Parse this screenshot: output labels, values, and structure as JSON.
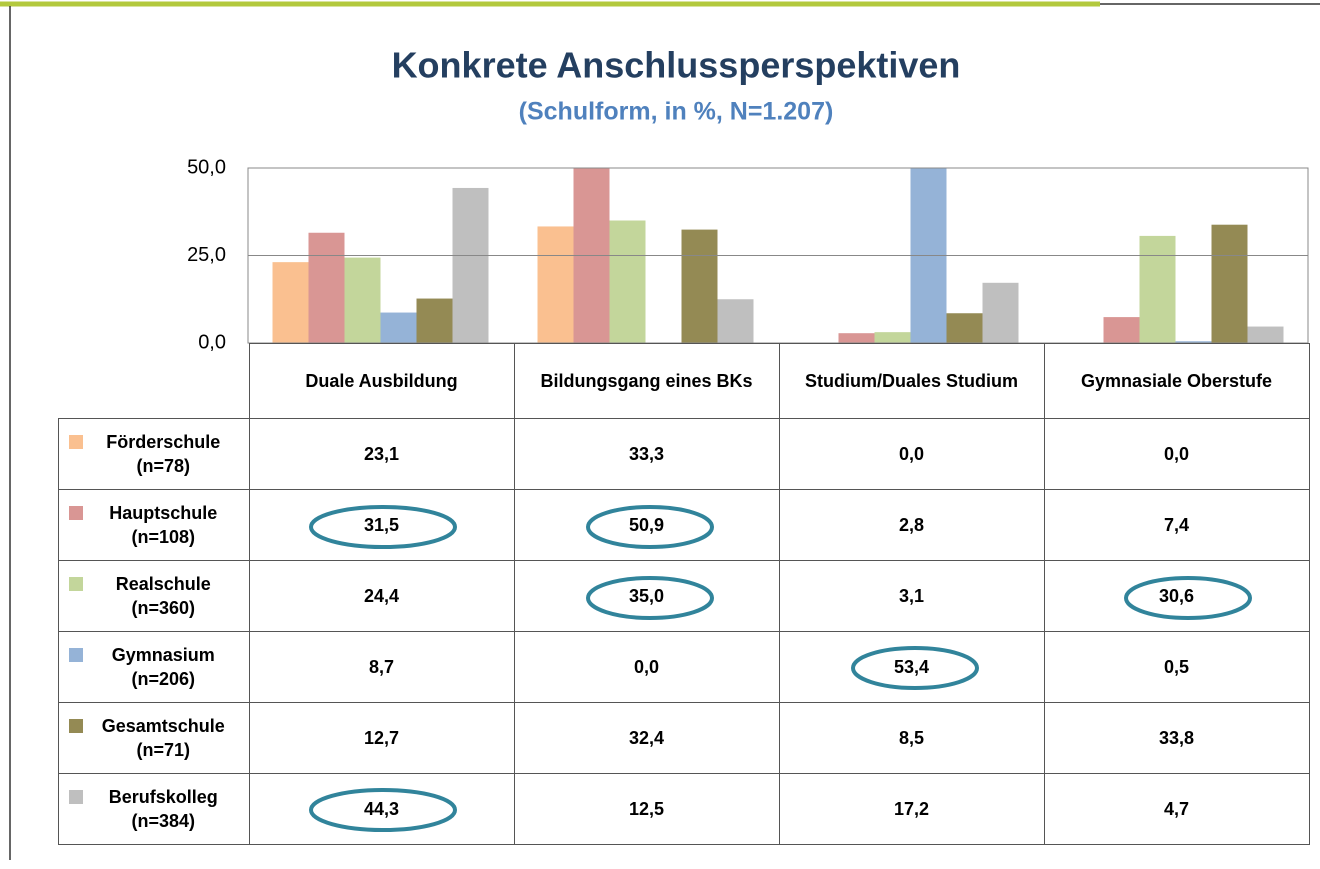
{
  "chart_data": {
    "type": "bar",
    "title": "Konkrete Anschlussperspektiven",
    "subtitle": "(Schulform, in %, N=1.207)",
    "categories": [
      "Duale Ausbildung",
      "Bildungsgang eines BKs",
      "Studium/Duales Studium",
      "Gymnasiale Oberstufe"
    ],
    "series": [
      {
        "name": "Förderschule (n=78)",
        "color": "#fac090",
        "values": [
          23.1,
          33.3,
          0.0,
          0.0
        ],
        "value_labels": [
          "23,1",
          "33,3",
          "0,0",
          "0,0"
        ]
      },
      {
        "name": "Hauptschule (n=108)",
        "color": "#d99694",
        "values": [
          31.5,
          50.9,
          2.8,
          7.4
        ],
        "value_labels": [
          "31,5",
          "50,9",
          "2,8",
          "7,4"
        ]
      },
      {
        "name": "Realschule (n=360)",
        "color": "#c3d69b",
        "values": [
          24.4,
          35.0,
          3.1,
          30.6
        ],
        "value_labels": [
          "24,4",
          "35,0",
          "3,1",
          "30,6"
        ]
      },
      {
        "name": "Gymnasium (n=206)",
        "color": "#95b3d7",
        "values": [
          8.7,
          0.0,
          53.4,
          0.5
        ],
        "value_labels": [
          "8,7",
          "0,0",
          "53,4",
          "0,5"
        ]
      },
      {
        "name": "Gesamtschule (n=71)",
        "color": "#948a54",
        "values": [
          12.7,
          32.4,
          8.5,
          33.8
        ],
        "value_labels": [
          "12,7",
          "32,4",
          "8,5",
          "33,8"
        ]
      },
      {
        "name": "Berufskolleg (n=384)",
        "color": "#bfbfbf",
        "values": [
          44.3,
          12.5,
          17.2,
          4.7
        ],
        "value_labels": [
          "44,3",
          "12,5",
          "17,2",
          "4,7"
        ]
      }
    ],
    "ylim": [
      0,
      50
    ],
    "yticks": [
      {
        "value": 0,
        "label": "0,0"
      },
      {
        "value": 25,
        "label": "25,0"
      },
      {
        "value": 50,
        "label": "50,0"
      }
    ],
    "grid": true
  }
}
